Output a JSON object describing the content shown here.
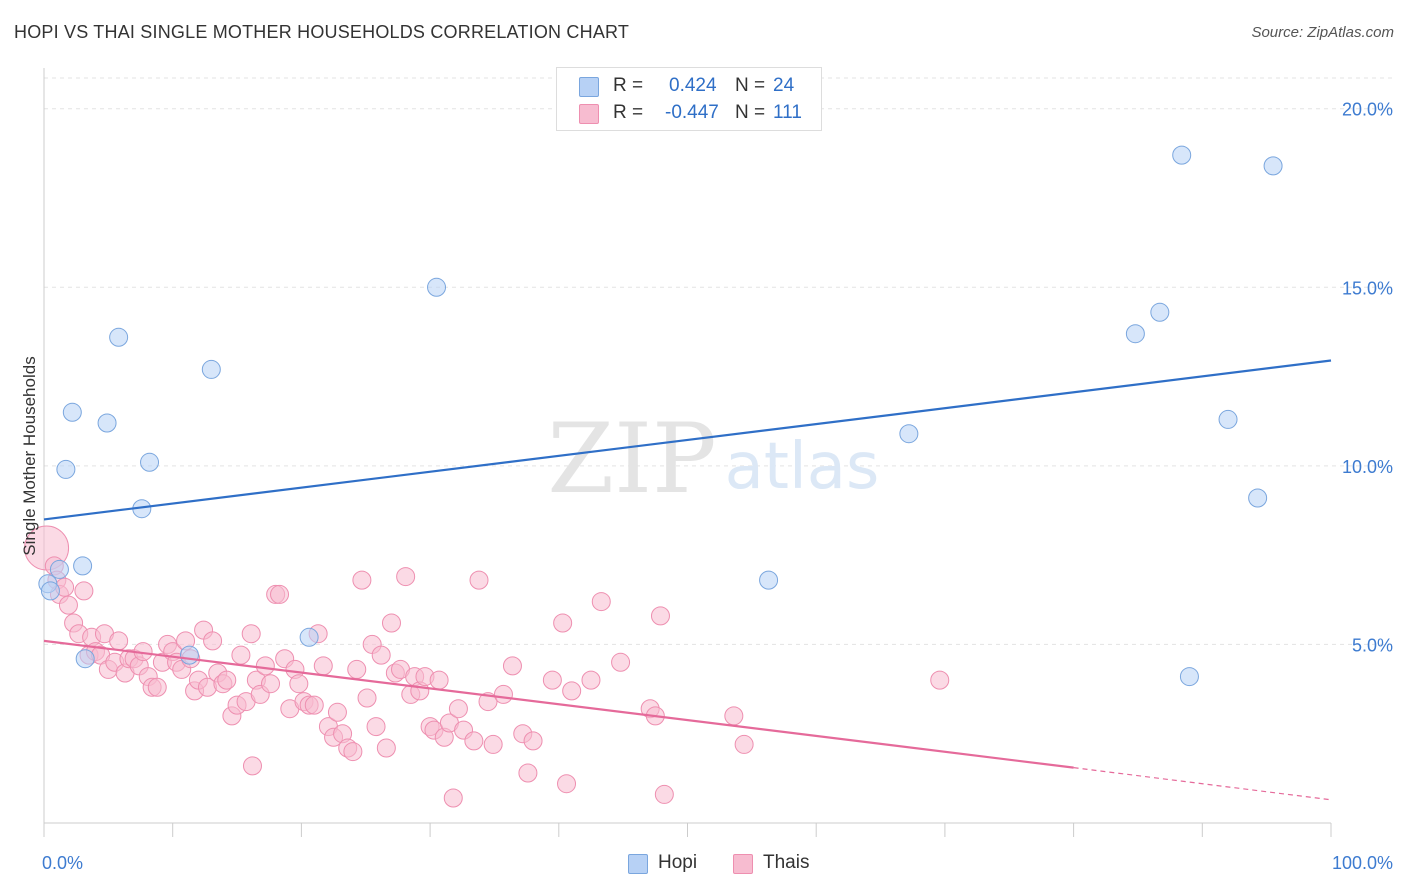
{
  "header": {
    "title": "HOPI VS THAI SINGLE MOTHER HOUSEHOLDS CORRELATION CHART",
    "source": "Source: ZipAtlas.com"
  },
  "legend": {
    "hopi": {
      "r_label": "R =",
      "r_value": "0.424",
      "n_label": "N =",
      "n_value": "24"
    },
    "thais": {
      "r_label": "R =",
      "r_value": "-0.447",
      "n_label": "N =",
      "n_value": "111"
    }
  },
  "bottom_legend": {
    "hopi": "Hopi",
    "thais": "Thais"
  },
  "watermark": {
    "zip": "ZIP",
    "atlas": "atlas"
  },
  "colors": {
    "hopi_fill": "#b7d1f5",
    "hopi_stroke": "#7aa6de",
    "hopi_line": "#2f6fc7",
    "thais_fill": "#f7bcd0",
    "thais_stroke": "#ee8fb0",
    "thais_line": "#e56a9a",
    "grid": "#e3e3e3",
    "axis_label": "#3d7bd0"
  },
  "chart_data": {
    "type": "scatter",
    "title": "HOPI VS THAI SINGLE MOTHER HOUSEHOLDS CORRELATION CHART",
    "xlabel": "",
    "ylabel": "Single Mother Households",
    "xlim": [
      0,
      100
    ],
    "ylim": [
      0,
      21
    ],
    "x_tick_labels": [
      "0.0%",
      "100.0%"
    ],
    "y_ticks": [
      5,
      10,
      15,
      20
    ],
    "y_tick_labels": [
      "5.0%",
      "10.0%",
      "15.0%",
      "20.0%"
    ],
    "grid": true,
    "legend_placement": "top-center",
    "series": [
      {
        "name": "Hopi",
        "r": 0.424,
        "n": 24,
        "trend": {
          "x": [
            0,
            100
          ],
          "y": [
            8.5,
            12.95
          ]
        },
        "points": [
          {
            "x": 0.3,
            "y": 6.7
          },
          {
            "x": 0.5,
            "y": 6.5
          },
          {
            "x": 1.2,
            "y": 7.1
          },
          {
            "x": 1.7,
            "y": 9.9
          },
          {
            "x": 2.2,
            "y": 11.5
          },
          {
            "x": 3.0,
            "y": 7.2
          },
          {
            "x": 3.2,
            "y": 4.6
          },
          {
            "x": 4.9,
            "y": 11.2
          },
          {
            "x": 5.8,
            "y": 13.6
          },
          {
            "x": 7.6,
            "y": 8.8
          },
          {
            "x": 8.2,
            "y": 10.1
          },
          {
            "x": 11.3,
            "y": 4.7
          },
          {
            "x": 13.0,
            "y": 12.7
          },
          {
            "x": 20.6,
            "y": 5.2
          },
          {
            "x": 30.5,
            "y": 15.0
          },
          {
            "x": 56.3,
            "y": 6.8
          },
          {
            "x": 67.2,
            "y": 10.9
          },
          {
            "x": 84.8,
            "y": 13.7
          },
          {
            "x": 86.7,
            "y": 14.3
          },
          {
            "x": 88.4,
            "y": 18.7
          },
          {
            "x": 89.0,
            "y": 4.1
          },
          {
            "x": 92.0,
            "y": 11.3
          },
          {
            "x": 94.3,
            "y": 9.1
          },
          {
            "x": 95.5,
            "y": 18.4
          }
        ]
      },
      {
        "name": "Thais",
        "r": -0.447,
        "n": 111,
        "trend": {
          "x": [
            0,
            80
          ],
          "y": [
            5.1,
            1.55
          ]
        },
        "trend_extension": {
          "x": [
            80,
            100
          ],
          "y": [
            1.55,
            0.65
          ]
        },
        "points": [
          {
            "x": 0.2,
            "y": 7.7
          },
          {
            "x": 0.8,
            "y": 7.2
          },
          {
            "x": 1.0,
            "y": 6.8
          },
          {
            "x": 1.2,
            "y": 6.4
          },
          {
            "x": 1.6,
            "y": 6.6
          },
          {
            "x": 1.9,
            "y": 6.1
          },
          {
            "x": 3.1,
            "y": 6.5
          },
          {
            "x": 2.3,
            "y": 5.6
          },
          {
            "x": 2.7,
            "y": 5.3
          },
          {
            "x": 3.5,
            "y": 4.7
          },
          {
            "x": 3.7,
            "y": 5.2
          },
          {
            "x": 4.0,
            "y": 4.8
          },
          {
            "x": 4.4,
            "y": 4.7
          },
          {
            "x": 4.7,
            "y": 5.3
          },
          {
            "x": 5.0,
            "y": 4.3
          },
          {
            "x": 5.5,
            "y": 4.5
          },
          {
            "x": 5.8,
            "y": 5.1
          },
          {
            "x": 6.3,
            "y": 4.2
          },
          {
            "x": 6.6,
            "y": 4.6
          },
          {
            "x": 7.0,
            "y": 4.6
          },
          {
            "x": 7.4,
            "y": 4.4
          },
          {
            "x": 7.7,
            "y": 4.8
          },
          {
            "x": 8.1,
            "y": 4.1
          },
          {
            "x": 8.4,
            "y": 3.8
          },
          {
            "x": 8.8,
            "y": 3.8
          },
          {
            "x": 9.2,
            "y": 4.5
          },
          {
            "x": 9.6,
            "y": 5.0
          },
          {
            "x": 10.0,
            "y": 4.8
          },
          {
            "x": 10.3,
            "y": 4.5
          },
          {
            "x": 10.7,
            "y": 4.3
          },
          {
            "x": 11.0,
            "y": 5.1
          },
          {
            "x": 11.4,
            "y": 4.6
          },
          {
            "x": 11.7,
            "y": 3.7
          },
          {
            "x": 12.0,
            "y": 4.0
          },
          {
            "x": 12.4,
            "y": 5.4
          },
          {
            "x": 12.7,
            "y": 3.8
          },
          {
            "x": 13.1,
            "y": 5.1
          },
          {
            "x": 13.5,
            "y": 4.2
          },
          {
            "x": 13.9,
            "y": 3.9
          },
          {
            "x": 14.2,
            "y": 4.0
          },
          {
            "x": 14.6,
            "y": 3.0
          },
          {
            "x": 15.0,
            "y": 3.3
          },
          {
            "x": 15.3,
            "y": 4.7
          },
          {
            "x": 15.7,
            "y": 3.4
          },
          {
            "x": 16.1,
            "y": 5.3
          },
          {
            "x": 16.5,
            "y": 4.0
          },
          {
            "x": 16.8,
            "y": 3.6
          },
          {
            "x": 17.2,
            "y": 4.4
          },
          {
            "x": 17.6,
            "y": 3.9
          },
          {
            "x": 18.0,
            "y": 6.4
          },
          {
            "x": 18.3,
            "y": 6.4
          },
          {
            "x": 18.7,
            "y": 4.6
          },
          {
            "x": 19.1,
            "y": 3.2
          },
          {
            "x": 19.5,
            "y": 4.3
          },
          {
            "x": 19.8,
            "y": 3.9
          },
          {
            "x": 20.2,
            "y": 3.4
          },
          {
            "x": 20.6,
            "y": 3.3
          },
          {
            "x": 21.0,
            "y": 3.3
          },
          {
            "x": 21.3,
            "y": 5.3
          },
          {
            "x": 21.7,
            "y": 4.4
          },
          {
            "x": 22.1,
            "y": 2.7
          },
          {
            "x": 22.5,
            "y": 2.4
          },
          {
            "x": 22.8,
            "y": 3.1
          },
          {
            "x": 23.2,
            "y": 2.5
          },
          {
            "x": 23.6,
            "y": 2.1
          },
          {
            "x": 24.0,
            "y": 2.0
          },
          {
            "x": 24.3,
            "y": 4.3
          },
          {
            "x": 24.7,
            "y": 6.8
          },
          {
            "x": 25.1,
            "y": 3.5
          },
          {
            "x": 25.5,
            "y": 5.0
          },
          {
            "x": 25.8,
            "y": 2.7
          },
          {
            "x": 26.2,
            "y": 4.7
          },
          {
            "x": 26.6,
            "y": 2.1
          },
          {
            "x": 27.0,
            "y": 5.6
          },
          {
            "x": 27.3,
            "y": 4.2
          },
          {
            "x": 27.7,
            "y": 4.3
          },
          {
            "x": 28.1,
            "y": 6.9
          },
          {
            "x": 28.5,
            "y": 3.6
          },
          {
            "x": 28.8,
            "y": 4.1
          },
          {
            "x": 29.2,
            "y": 3.7
          },
          {
            "x": 29.6,
            "y": 4.1
          },
          {
            "x": 30.0,
            "y": 2.7
          },
          {
            "x": 30.3,
            "y": 2.6
          },
          {
            "x": 30.7,
            "y": 4.0
          },
          {
            "x": 31.1,
            "y": 2.4
          },
          {
            "x": 31.5,
            "y": 2.8
          },
          {
            "x": 32.2,
            "y": 3.2
          },
          {
            "x": 32.6,
            "y": 2.6
          },
          {
            "x": 33.4,
            "y": 2.3
          },
          {
            "x": 33.8,
            "y": 6.8
          },
          {
            "x": 34.5,
            "y": 3.4
          },
          {
            "x": 34.9,
            "y": 2.2
          },
          {
            "x": 35.7,
            "y": 3.6
          },
          {
            "x": 36.4,
            "y": 4.4
          },
          {
            "x": 37.2,
            "y": 2.5
          },
          {
            "x": 38.0,
            "y": 2.3
          },
          {
            "x": 39.5,
            "y": 4.0
          },
          {
            "x": 40.3,
            "y": 5.6
          },
          {
            "x": 41.0,
            "y": 3.7
          },
          {
            "x": 31.8,
            "y": 0.7
          },
          {
            "x": 37.6,
            "y": 1.4
          },
          {
            "x": 40.6,
            "y": 1.1
          },
          {
            "x": 42.5,
            "y": 4.0
          },
          {
            "x": 43.3,
            "y": 6.2
          },
          {
            "x": 44.8,
            "y": 4.5
          },
          {
            "x": 47.1,
            "y": 3.2
          },
          {
            "x": 47.5,
            "y": 3.0
          },
          {
            "x": 47.9,
            "y": 5.8
          },
          {
            "x": 48.2,
            "y": 0.8
          },
          {
            "x": 53.6,
            "y": 3.0
          },
          {
            "x": 54.4,
            "y": 2.2
          },
          {
            "x": 69.6,
            "y": 4.0
          },
          {
            "x": 16.2,
            "y": 1.6
          }
        ]
      }
    ]
  }
}
